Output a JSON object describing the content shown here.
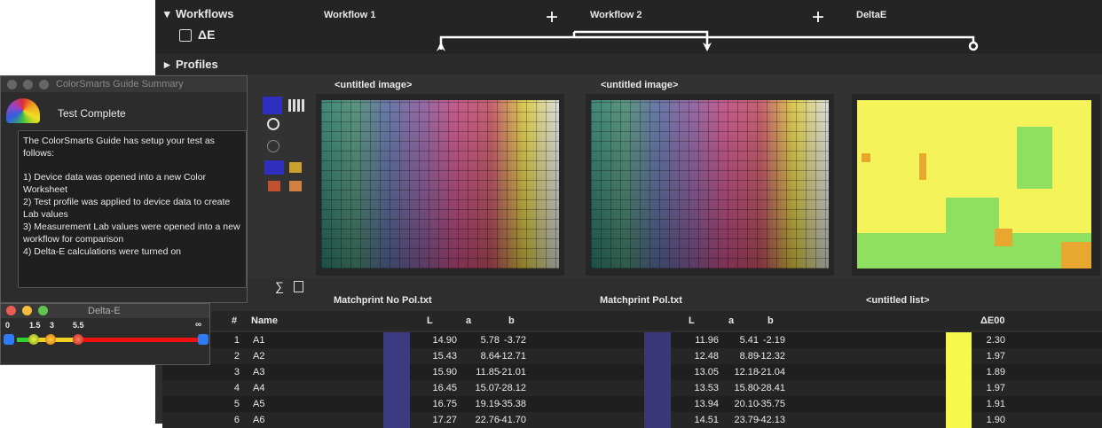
{
  "workflows": {
    "title": "Workflows",
    "columns": [
      "Workflow 1",
      "Workflow 2",
      "DeltaE"
    ],
    "plus": [
      "+",
      "+"
    ],
    "delta_icon": "ΔE"
  },
  "profiles": {
    "title": "Profiles"
  },
  "images": [
    "<untitled image>",
    "<untitled image>"
  ],
  "toolbar": {
    "sigma": "∑"
  },
  "guide_window": {
    "title": "ColorSmarts Guide Summary",
    "heading": "Test Complete",
    "paragraphs": [
      "The ColorSmarts Guide has setup your test as follows:",
      "1) Device data was opened into a new Color Worksheet",
      "2) Test profile was applied to device data to create Lab values",
      "3) Measurement Lab values were opened into a new workflow for comparison",
      "4) Delta-E calculations were turned on"
    ]
  },
  "delta_window": {
    "title": "Delta-E",
    "marks": [
      "0",
      "1.5",
      "3",
      "5.5",
      "∞"
    ]
  },
  "table": {
    "sources": [
      "Matchprint No Pol.txt",
      "Matchprint Pol.txt",
      "<untitled list>"
    ],
    "columns": [
      "#",
      "Name",
      "L",
      "a",
      "b",
      "L",
      "a",
      "b",
      "ΔE00"
    ],
    "rows": [
      [
        "1",
        "A1",
        "14.90",
        "5.78",
        "-3.72",
        "11.96",
        "5.41",
        "-2.19",
        "2.30"
      ],
      [
        "2",
        "A2",
        "15.43",
        "8.64",
        "-12.71",
        "12.48",
        "8.89",
        "-12.32",
        "1.97"
      ],
      [
        "3",
        "A3",
        "15.90",
        "11.85",
        "-21.01",
        "13.05",
        "12.18",
        "-21.04",
        "1.89"
      ],
      [
        "4",
        "A4",
        "16.45",
        "15.07",
        "-28.12",
        "13.53",
        "15.80",
        "-28.41",
        "1.97"
      ],
      [
        "5",
        "A5",
        "16.75",
        "19.19",
        "-35.38",
        "13.94",
        "20.10",
        "-35.75",
        "1.91"
      ],
      [
        "6",
        "A6",
        "17.27",
        "22.76",
        "-41.70",
        "14.51",
        "23.79",
        "-42.13",
        "1.90"
      ]
    ]
  }
}
